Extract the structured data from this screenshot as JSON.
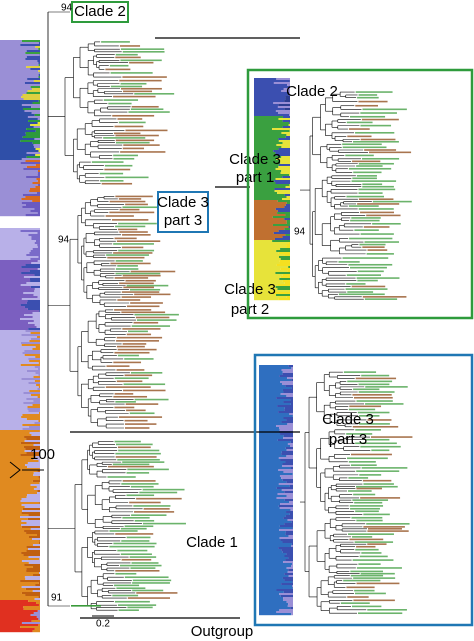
{
  "main_tree": {
    "clade_2": "Clade 2",
    "clade_3_part_1": [
      "Clade 3",
      "part 1"
    ],
    "clade_3_part_3": [
      "Clade 3",
      "part 3"
    ],
    "clade_3_part_2": [
      "Clade 3",
      "part 2"
    ],
    "clade_1": "Clade 1",
    "outgroup": "Outgroup",
    "support_values": [
      "94",
      "94",
      "100",
      "91"
    ],
    "scale_bar": "0.2"
  },
  "inset_clade_2": {
    "title": "Clade 2",
    "support_value": "94"
  },
  "inset_clade_3_part_3": {
    "title": [
      "Clade 3",
      "part 3"
    ]
  }
}
